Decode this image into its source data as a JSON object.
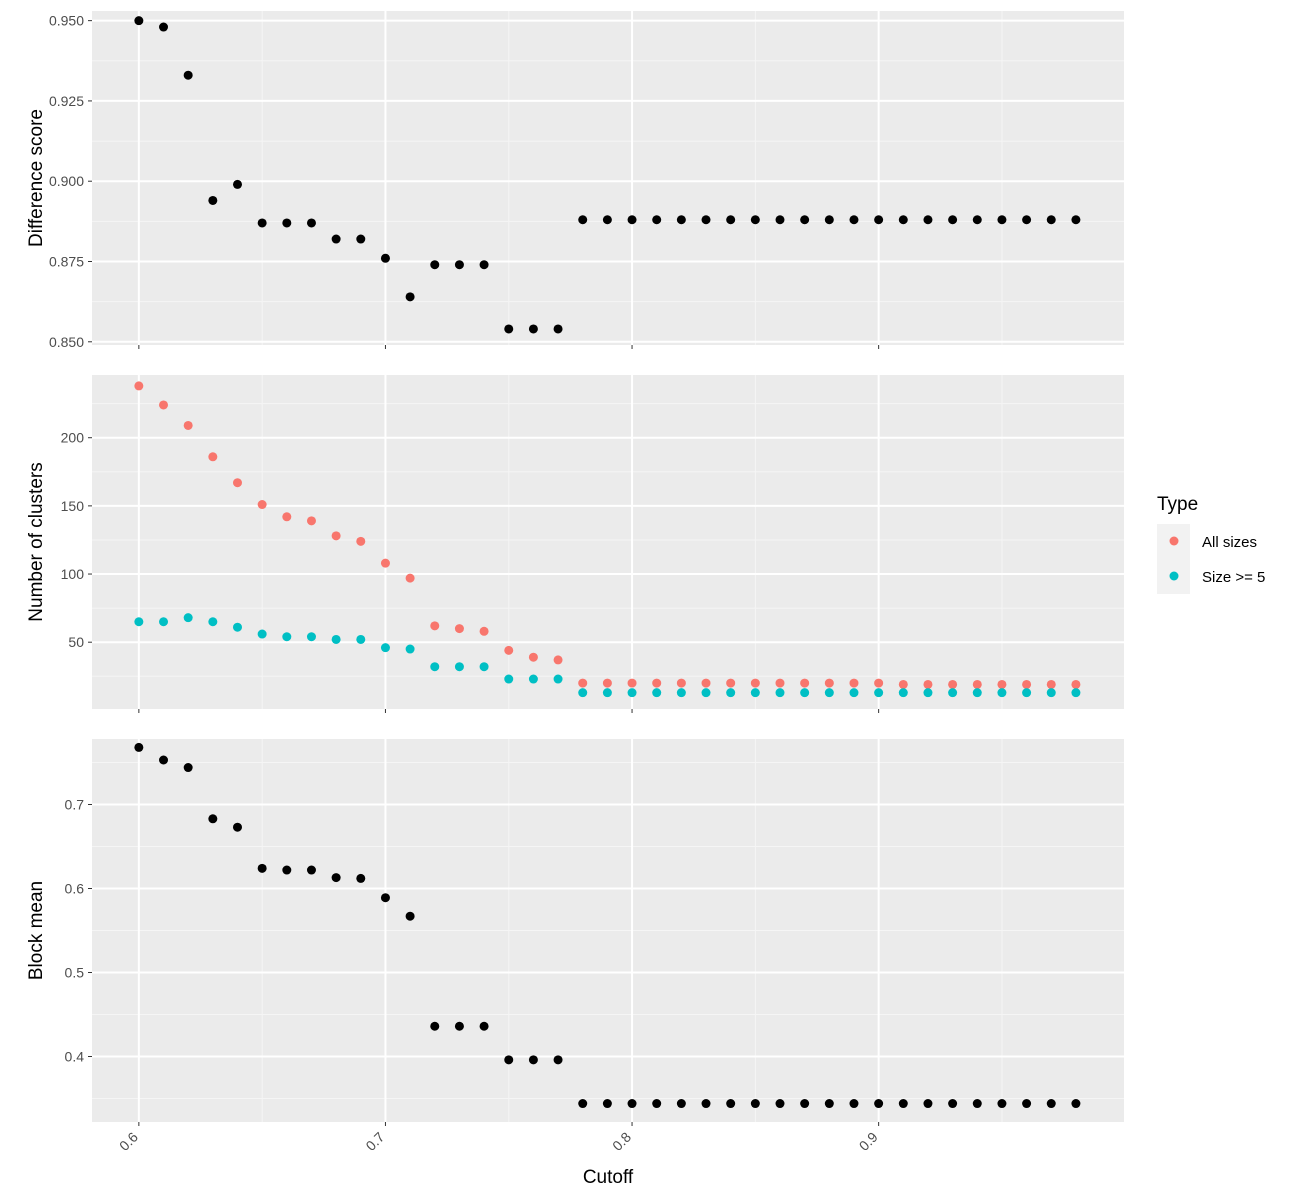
{
  "chart_data": [
    {
      "type": "scatter",
      "panel": "top",
      "ylabel": "Difference score",
      "ylim": [
        0.849,
        0.953
      ],
      "yticks": [
        0.85,
        0.875,
        0.9,
        0.925,
        0.95
      ],
      "ytick_labels": [
        "0.850",
        "0.875",
        "0.900",
        "0.925",
        "0.950"
      ],
      "x": [
        0.6,
        0.61,
        0.62,
        0.63,
        0.64,
        0.65,
        0.66,
        0.67,
        0.68,
        0.69,
        0.7,
        0.71,
        0.72,
        0.73,
        0.74,
        0.75,
        0.76,
        0.77,
        0.78,
        0.79,
        0.8,
        0.81,
        0.82,
        0.83,
        0.84,
        0.85,
        0.86,
        0.87,
        0.88,
        0.89,
        0.9,
        0.91,
        0.92,
        0.93,
        0.94,
        0.95,
        0.96,
        0.97,
        0.98
      ],
      "series": [
        {
          "color": "#000000",
          "values": [
            0.95,
            0.948,
            0.933,
            0.894,
            0.899,
            0.887,
            0.887,
            0.887,
            0.882,
            0.882,
            0.876,
            0.864,
            0.874,
            0.874,
            0.874,
            0.854,
            0.854,
            0.854,
            0.888,
            0.888,
            0.888,
            0.888,
            0.888,
            0.888,
            0.888,
            0.888,
            0.888,
            0.888,
            0.888,
            0.888,
            0.888,
            0.888,
            0.888,
            0.888,
            0.888,
            0.888,
            0.888,
            0.888,
            0.888
          ]
        }
      ]
    },
    {
      "type": "scatter",
      "panel": "middle",
      "ylabel": "Number of clusters",
      "ylim": [
        1,
        246
      ],
      "yticks": [
        50,
        100,
        150,
        200
      ],
      "ytick_labels": [
        "50",
        "100",
        "150",
        "200"
      ],
      "x": [
        0.6,
        0.61,
        0.62,
        0.63,
        0.64,
        0.65,
        0.66,
        0.67,
        0.68,
        0.69,
        0.7,
        0.71,
        0.72,
        0.73,
        0.74,
        0.75,
        0.76,
        0.77,
        0.78,
        0.79,
        0.8,
        0.81,
        0.82,
        0.83,
        0.84,
        0.85,
        0.86,
        0.87,
        0.88,
        0.89,
        0.9,
        0.91,
        0.92,
        0.93,
        0.94,
        0.95,
        0.96,
        0.97,
        0.98
      ],
      "series": [
        {
          "name": "All sizes",
          "color": "#F8766D",
          "values": [
            238,
            224,
            209,
            186,
            167,
            151,
            142,
            139,
            128,
            124,
            108,
            97,
            62,
            60,
            58,
            44,
            39,
            37,
            20,
            20,
            20,
            20,
            20,
            20,
            20,
            20,
            20,
            20,
            20,
            20,
            20,
            19,
            19,
            19,
            19,
            19,
            19,
            19,
            19
          ]
        },
        {
          "name": "Size >= 5",
          "color": "#00BFC4",
          "values": [
            65,
            65,
            68,
            65,
            61,
            56,
            54,
            54,
            52,
            52,
            46,
            45,
            32,
            32,
            32,
            23,
            23,
            23,
            13,
            13,
            13,
            13,
            13,
            13,
            13,
            13,
            13,
            13,
            13,
            13,
            13,
            13,
            13,
            13,
            13,
            13,
            13,
            13,
            13
          ]
        }
      ]
    },
    {
      "type": "scatter",
      "panel": "bottom",
      "ylabel": "Block mean",
      "xlabel": "Cutoff",
      "ylim": [
        0.322,
        0.778
      ],
      "yticks": [
        0.4,
        0.5,
        0.6,
        0.7
      ],
      "ytick_labels": [
        "0.4",
        "0.5",
        "0.6",
        "0.7"
      ],
      "xlim": [
        0.581,
        0.9995
      ],
      "xticks": [
        0.6,
        0.7,
        0.8,
        0.9
      ],
      "xtick_labels": [
        "0.6",
        "0.7",
        "0.8",
        "0.9"
      ],
      "x": [
        0.6,
        0.61,
        0.62,
        0.63,
        0.64,
        0.65,
        0.66,
        0.67,
        0.68,
        0.69,
        0.7,
        0.71,
        0.72,
        0.73,
        0.74,
        0.75,
        0.76,
        0.77,
        0.78,
        0.79,
        0.8,
        0.81,
        0.82,
        0.83,
        0.84,
        0.85,
        0.86,
        0.87,
        0.88,
        0.89,
        0.9,
        0.91,
        0.92,
        0.93,
        0.94,
        0.95,
        0.96,
        0.97,
        0.98
      ],
      "series": [
        {
          "color": "#000000",
          "values": [
            0.768,
            0.753,
            0.744,
            0.683,
            0.673,
            0.624,
            0.622,
            0.622,
            0.613,
            0.612,
            0.589,
            0.567,
            0.436,
            0.436,
            0.436,
            0.396,
            0.396,
            0.396,
            0.344,
            0.344,
            0.344,
            0.344,
            0.344,
            0.344,
            0.344,
            0.344,
            0.344,
            0.344,
            0.344,
            0.344,
            0.344,
            0.344,
            0.344,
            0.344,
            0.344,
            0.344,
            0.344,
            0.344,
            0.344
          ]
        }
      ]
    }
  ],
  "legend": {
    "title": "Type",
    "placement": "right",
    "items": [
      {
        "label": "All sizes",
        "color": "#F8766D"
      },
      {
        "label": "Size >= 5",
        "color": "#00BFC4"
      }
    ]
  },
  "style": {
    "panel_bg": "#EBEBEB",
    "grid_major": "#FFFFFF",
    "grid_minor": "#F5F5F5"
  },
  "grid": true
}
